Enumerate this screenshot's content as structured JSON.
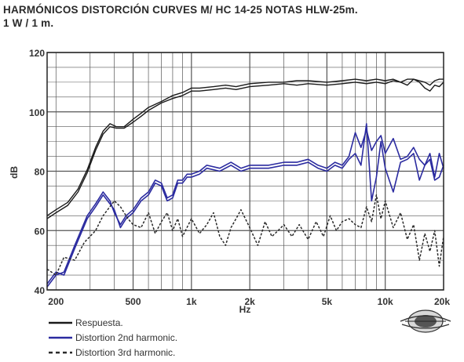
{
  "title_line1": "HARMÓNICOS DISTORCIÓN CURVES  M/ HC 14-25  NOTAS HLW-25m.",
  "title_line2": "1 W / 1 m.",
  "colors": {
    "response": "#1a1a1a",
    "second_harmonic": "#2b2ba0",
    "third_harmonic": "#2a2a2a",
    "grid": "#555555"
  },
  "chart_data": {
    "type": "line",
    "title": "HARMÓNICOS DISTORCIÓN CURVES  M/ HC 14-25  NOTAS HLW-25m.",
    "subtitle": "1 W / 1 m.",
    "xlabel": "Hz",
    "ylabel": "dB",
    "xscale": "log",
    "xlim": [
      180,
      20000
    ],
    "ylim": [
      40,
      120
    ],
    "grid": true,
    "x_ticks": [
      {
        "value": 200,
        "label": "200"
      },
      {
        "value": 500,
        "label": "500"
      },
      {
        "value": 1000,
        "label": "1k"
      },
      {
        "value": 2000,
        "label": "2k"
      },
      {
        "value": 5000,
        "label": "5k"
      },
      {
        "value": 10000,
        "label": "10k"
      },
      {
        "value": 20000,
        "label": "20k"
      }
    ],
    "y_ticks": [
      {
        "value": 40,
        "label": "40"
      },
      {
        "value": 60,
        "label": "60"
      },
      {
        "value": 80,
        "label": "80"
      },
      {
        "value": 100,
        "label": "100"
      },
      {
        "value": 120,
        "label": "120"
      }
    ],
    "legend_placement": "bottom-left",
    "series": [
      {
        "name": "Respuesta.",
        "style": "solid-black",
        "x": [
          180,
          200,
          230,
          260,
          290,
          320,
          350,
          380,
          410,
          450,
          500,
          550,
          600,
          700,
          800,
          900,
          1000,
          1100,
          1300,
          1500,
          1700,
          2000,
          2500,
          3000,
          3500,
          4000,
          5000,
          6000,
          7000,
          8000,
          9000,
          10000,
          11000,
          12000,
          13000,
          14000,
          15000,
          16000,
          17000,
          18000,
          19000,
          20000
        ],
        "y": [
          65,
          67,
          69.5,
          74,
          80.5,
          88,
          93.5,
          96,
          95,
          95,
          97.5,
          99.5,
          101.5,
          103.5,
          105.5,
          106.5,
          108,
          108,
          108.5,
          109,
          108.5,
          109.5,
          110,
          110,
          110.5,
          110.5,
          110,
          110.5,
          111,
          110.5,
          111,
          110.5,
          111,
          110,
          111,
          111,
          110.5,
          110,
          109,
          110.5,
          111,
          111
        ]
      },
      {
        "name": "Respuesta.",
        "style": "solid-black",
        "x": [
          180,
          200,
          230,
          260,
          290,
          320,
          350,
          380,
          410,
          450,
          500,
          550,
          600,
          700,
          800,
          900,
          1000,
          1100,
          1300,
          1500,
          1700,
          2000,
          2500,
          3000,
          3500,
          4000,
          5000,
          6000,
          7000,
          8000,
          9000,
          10000,
          11000,
          12000,
          13000,
          14000,
          15000,
          16000,
          17000,
          18000,
          19000,
          20000
        ],
        "y": [
          64,
          66,
          68.5,
          73,
          79.5,
          87,
          92.5,
          95,
          94.5,
          94.5,
          96.5,
          98.5,
          100.5,
          103,
          104.5,
          105.5,
          107,
          107,
          107.5,
          108,
          107.5,
          108.5,
          109,
          109.5,
          109,
          109.5,
          109,
          109.5,
          110,
          109.5,
          110,
          109.5,
          110.5,
          110,
          109,
          111,
          110,
          108,
          107,
          109,
          108.5,
          110
        ]
      },
      {
        "name": "Distortion 2nd harmonic.",
        "style": "solid-blue",
        "x": [
          180,
          200,
          220,
          250,
          290,
          320,
          350,
          380,
          400,
          430,
          460,
          500,
          550,
          600,
          650,
          700,
          750,
          800,
          850,
          900,
          950,
          1000,
          1100,
          1200,
          1400,
          1600,
          1800,
          2000,
          2500,
          3000,
          3500,
          4000,
          4500,
          5000,
          5500,
          6000,
          6500,
          7000,
          7500,
          8000,
          8500,
          9000,
          9500,
          10000,
          11000,
          12000,
          13000,
          14000,
          15000,
          16000,
          17000,
          18000,
          19000,
          20000
        ],
        "y": [
          41,
          45,
          46,
          55,
          65,
          69,
          73,
          70,
          66,
          62,
          65,
          67,
          71,
          73,
          77,
          76,
          71,
          72,
          77,
          77,
          79,
          79,
          80,
          82,
          81,
          83,
          81,
          82,
          82,
          83,
          83,
          84,
          82,
          81,
          83,
          82,
          85,
          93,
          88,
          94,
          87,
          90,
          92,
          86,
          91,
          84,
          85,
          88,
          84,
          82,
          86,
          78,
          86,
          81
        ]
      },
      {
        "name": "Distortion 2nd harmonic.",
        "style": "solid-blue",
        "x": [
          180,
          200,
          220,
          250,
          290,
          320,
          350,
          380,
          400,
          430,
          460,
          500,
          550,
          600,
          650,
          700,
          750,
          800,
          850,
          900,
          950,
          1000,
          1100,
          1200,
          1400,
          1600,
          1800,
          2000,
          2500,
          3000,
          3500,
          4000,
          4500,
          5000,
          5500,
          6000,
          6500,
          7000,
          7500,
          8000,
          8500,
          9000,
          9500,
          10000,
          11000,
          12000,
          13000,
          14000,
          15000,
          16000,
          17000,
          18000,
          19000,
          20000
        ],
        "y": [
          42,
          46,
          45,
          54,
          64,
          68,
          72,
          69,
          67,
          61,
          64,
          66,
          70,
          72,
          76,
          75,
          70,
          71,
          76,
          76,
          78,
          78,
          79,
          81,
          80,
          82,
          80,
          81,
          81,
          82,
          82,
          83,
          81,
          80,
          82,
          81,
          84,
          86,
          82,
          96,
          70,
          78,
          90,
          81,
          73,
          83,
          84,
          86,
          77,
          82,
          84,
          77,
          78,
          82
        ]
      },
      {
        "name": "Distortion 3rd harmonic.",
        "style": "dashed-black",
        "x": [
          180,
          200,
          220,
          250,
          280,
          320,
          350,
          400,
          430,
          470,
          500,
          550,
          600,
          650,
          700,
          750,
          800,
          850,
          900,
          1000,
          1100,
          1200,
          1300,
          1400,
          1500,
          1600,
          1700,
          1800,
          2000,
          2200,
          2400,
          2600,
          2800,
          3000,
          3300,
          3600,
          4000,
          4400,
          4800,
          5200,
          5600,
          6000,
          6500,
          7000,
          7500,
          8000,
          8500,
          9000,
          9500,
          10000,
          11000,
          12000,
          13000,
          14000,
          15000,
          16000,
          17000,
          18000,
          19000,
          20000
        ],
        "y": [
          47,
          45,
          51,
          50,
          56,
          60,
          65,
          70,
          68,
          64,
          62,
          61,
          66,
          59,
          63,
          66,
          60,
          64,
          58,
          64,
          59,
          62,
          66,
          58,
          55,
          61,
          64,
          67,
          61,
          55,
          63,
          58,
          60,
          62,
          58,
          62,
          57,
          63,
          58,
          65,
          60,
          63,
          64,
          62,
          61,
          68,
          63,
          72,
          64,
          70,
          61,
          66,
          57,
          62,
          50,
          59,
          53,
          60,
          48,
          58
        ]
      }
    ]
  },
  "legend": [
    {
      "label": "Respuesta.",
      "style": "solid-black"
    },
    {
      "label": "Distortion 2nd harmonic.",
      "style": "solid-blue"
    },
    {
      "label": "Distortion 3rd harmonic.",
      "style": "dashed-black"
    }
  ],
  "logo_icon": "brand-emblem-icon"
}
